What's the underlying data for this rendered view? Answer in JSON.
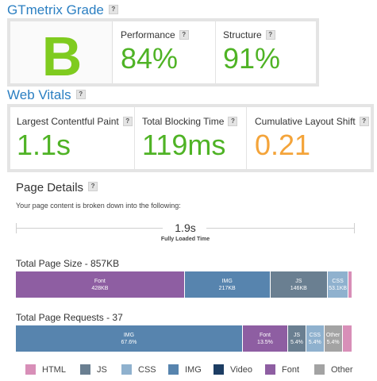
{
  "grade_section": {
    "title": "GTmetrix Grade",
    "grade": "B",
    "performance": {
      "label": "Performance",
      "value": "84%"
    },
    "structure": {
      "label": "Structure",
      "value": "91%"
    }
  },
  "web_vitals": {
    "title": "Web Vitals",
    "lcp": {
      "label": "Largest Contentful Paint",
      "value": "1.1s"
    },
    "tbt": {
      "label": "Total Blocking Time",
      "value": "119ms"
    },
    "cls": {
      "label": "Cumulative Layout Shift",
      "value": "0.21"
    }
  },
  "help_icon_text": "?",
  "page_details": {
    "title": "Page Details",
    "subtitle": "Your page content is broken down into the following:",
    "fully_loaded": {
      "value": "1.9s",
      "label": "Fully Loaded Time"
    }
  },
  "page_size": {
    "title": "Total Page Size - 857KB",
    "segments": [
      {
        "name": "Font",
        "value": "428KB",
        "fraction": 0.503,
        "color": "#8e5ea2"
      },
      {
        "name": "IMG",
        "value": "217KB",
        "fraction": 0.255,
        "color": "#5784ae"
      },
      {
        "name": "JS",
        "value": "146KB",
        "fraction": 0.171,
        "color": "#6a7f91"
      },
      {
        "name": "CSS",
        "value": "53.1KB",
        "fraction": 0.062,
        "color": "#8fb1ce"
      },
      {
        "name": "",
        "value": "",
        "fraction": 0.009,
        "color": "#d88fb8"
      }
    ]
  },
  "page_requests": {
    "title": "Total Page Requests - 37",
    "segments": [
      {
        "name": "IMG",
        "value": "67.6%",
        "fraction": 0.676,
        "color": "#5784ae"
      },
      {
        "name": "Font",
        "value": "13.5%",
        "fraction": 0.135,
        "color": "#8e5ea2"
      },
      {
        "name": "JS",
        "value": "5.4%",
        "fraction": 0.054,
        "color": "#6a7f91"
      },
      {
        "name": "CSS",
        "value": "5.4%",
        "fraction": 0.054,
        "color": "#8fb1ce"
      },
      {
        "name": "Other",
        "value": "5.4%",
        "fraction": 0.054,
        "color": "#a3a3a3"
      },
      {
        "name": "",
        "value": "",
        "fraction": 0.027,
        "color": "#d88fb8"
      }
    ]
  },
  "legend": [
    {
      "label": "HTML",
      "color": "#d88fb8"
    },
    {
      "label": "JS",
      "color": "#6a7f91"
    },
    {
      "label": "CSS",
      "color": "#8fb1ce"
    },
    {
      "label": "IMG",
      "color": "#5784ae"
    },
    {
      "label": "Video",
      "color": "#1c3d63"
    },
    {
      "label": "Font",
      "color": "#8e5ea2"
    },
    {
      "label": "Other",
      "color": "#a3a3a3"
    }
  ]
}
